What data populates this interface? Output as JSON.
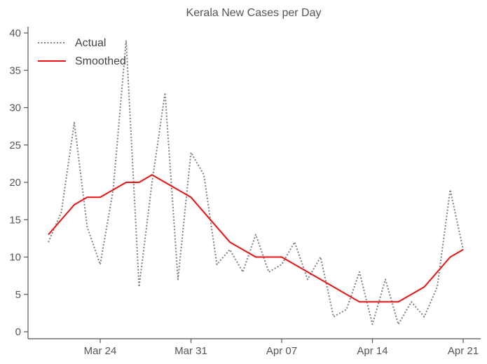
{
  "chart_data": {
    "type": "line",
    "title": "Kerala New Cases per Day",
    "xlabel": "",
    "ylabel": "",
    "x_dates": [
      "Mar 20",
      "Mar 21",
      "Mar 22",
      "Mar 23",
      "Mar 24",
      "Mar 25",
      "Mar 26",
      "Mar 27",
      "Mar 28",
      "Mar 29",
      "Mar 30",
      "Mar 31",
      "Apr 01",
      "Apr 02",
      "Apr 03",
      "Apr 04",
      "Apr 05",
      "Apr 06",
      "Apr 07",
      "Apr 08",
      "Apr 09",
      "Apr 10",
      "Apr 11",
      "Apr 12",
      "Apr 13",
      "Apr 14",
      "Apr 15",
      "Apr 16",
      "Apr 17",
      "Apr 18",
      "Apr 19",
      "Apr 20",
      "Apr 21",
      "Apr 22"
    ],
    "x_ticks": [
      "Mar 24",
      "Mar 31",
      "Apr 07",
      "Apr 14",
      "Apr 21"
    ],
    "y_ticks": [
      "0",
      "5",
      "10",
      "15",
      "20",
      "25",
      "30",
      "35",
      "40"
    ],
    "ylim": [
      0,
      41
    ],
    "grid": false,
    "legend_position": "top-left",
    "series": [
      {
        "name": "Actual",
        "style": "dotted",
        "color": "#808080",
        "values": [
          12,
          16,
          28,
          14,
          9,
          19,
          39,
          6,
          20,
          32,
          7,
          24,
          21,
          9,
          11,
          8,
          13,
          8,
          9,
          12,
          7,
          10,
          2,
          3,
          8,
          1,
          7,
          1,
          4,
          2,
          6,
          19,
          11,
          null
        ]
      },
      {
        "name": "Smoothed",
        "style": "solid",
        "color": "#ee1111",
        "values": [
          13,
          null,
          17,
          18,
          18,
          null,
          20,
          20,
          21,
          null,
          null,
          18,
          null,
          null,
          12,
          null,
          10,
          null,
          10,
          null,
          null,
          7,
          null,
          null,
          4,
          null,
          null,
          4,
          null,
          6,
          null,
          10,
          11,
          null
        ]
      }
    ]
  }
}
